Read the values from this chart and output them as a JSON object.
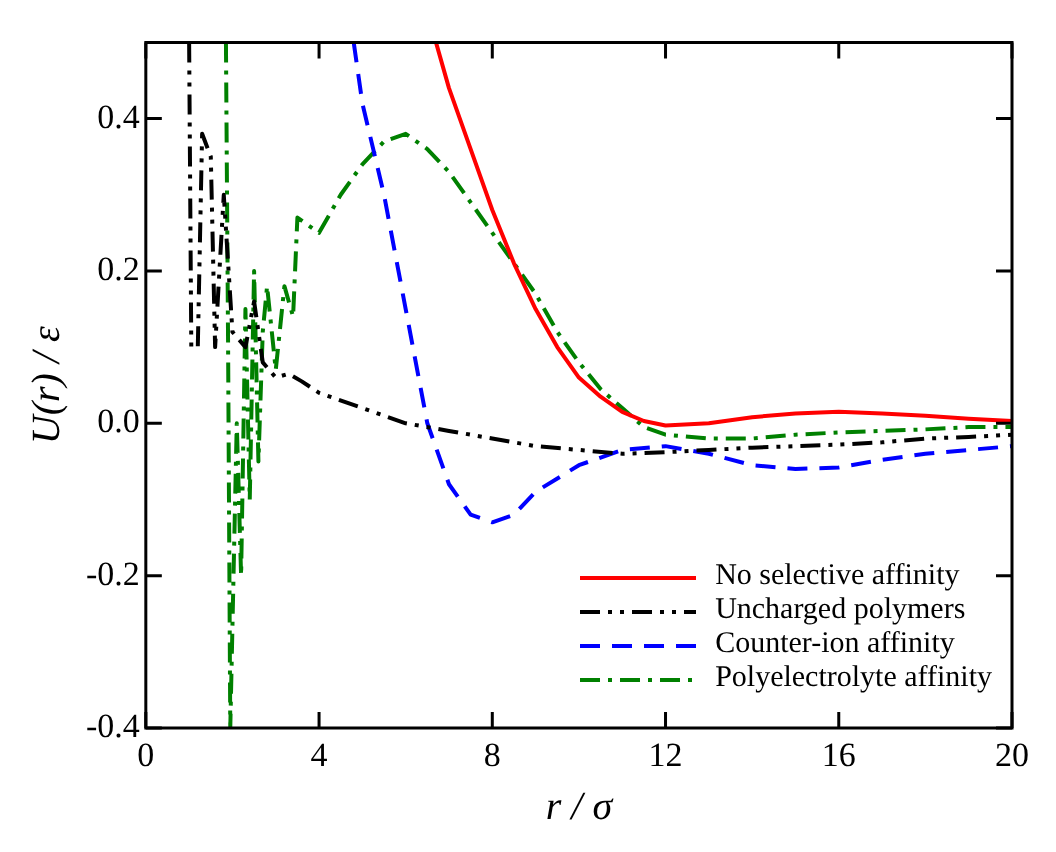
{
  "chart_data": {
    "type": "line",
    "xlabel": "r / σ",
    "ylabel": "U(r) / ε",
    "xlim": [
      0,
      20
    ],
    "ylim": [
      -0.4,
      0.5
    ],
    "xticks": [
      0,
      4,
      8,
      12,
      16,
      20
    ],
    "yticks": [
      -0.4,
      -0.2,
      {
        "value": 0,
        "label": "0.0"
      },
      0.2,
      0.4
    ],
    "grid": false,
    "legend": "bottom right",
    "marker": "none",
    "series": [
      {
        "name": "No selective affinity",
        "color": "#ff0000",
        "line_style": "solid",
        "x": [
          6.7,
          7,
          7.5,
          8,
          8.5,
          9,
          9.5,
          10,
          10.5,
          11,
          11.5,
          12,
          13,
          14,
          15,
          16,
          17,
          18,
          19,
          20
        ],
        "values": [
          0.5,
          0.44,
          0.36,
          0.28,
          0.21,
          0.15,
          0.1,
          0.06,
          0.035,
          0.015,
          0.003,
          -0.003,
          0,
          0.008,
          0.013,
          0.015,
          0.013,
          0.01,
          0.006,
          0.003
        ]
      },
      {
        "name": "Uncharged polymers",
        "color": "#000000",
        "line_style": "dashdotdot",
        "x": [
          1,
          1.05,
          1.2,
          1.3,
          1.5,
          1.6,
          1.8,
          2,
          2.3,
          2.5,
          2.7,
          3,
          3.3,
          3.6,
          4,
          5,
          6,
          7,
          8,
          9,
          10,
          11,
          12,
          13,
          14,
          15,
          16,
          17,
          18,
          19,
          20
        ],
        "values": [
          0.5,
          0.1,
          0.1,
          0.38,
          0.35,
          0.1,
          0.3,
          0.12,
          0.1,
          0.16,
          0.08,
          0.06,
          0.065,
          0.055,
          0.04,
          0.02,
          0,
          -0.01,
          -0.02,
          -0.03,
          -0.035,
          -0.04,
          -0.038,
          -0.035,
          -0.032,
          -0.03,
          -0.028,
          -0.025,
          -0.02,
          -0.018,
          -0.015
        ]
      },
      {
        "name": "Counter-ion affinity",
        "color": "#0000ff",
        "line_style": "dashed",
        "x": [
          4.8,
          5,
          5.5,
          6,
          6.5,
          7,
          7.5,
          8,
          8.5,
          9,
          10,
          11,
          12,
          13,
          14,
          15,
          16,
          17,
          18,
          19,
          20
        ],
        "values": [
          0.5,
          0.42,
          0.3,
          0.15,
          0,
          -0.08,
          -0.12,
          -0.13,
          -0.12,
          -0.09,
          -0.055,
          -0.035,
          -0.03,
          -0.04,
          -0.055,
          -0.06,
          -0.058,
          -0.048,
          -0.04,
          -0.035,
          -0.03
        ]
      },
      {
        "name": "Polyelectrolyte affinity",
        "color": "#008000",
        "line_style": "dashdot",
        "x": [
          1.85,
          1.9,
          1.95,
          2.1,
          2.2,
          2.3,
          2.4,
          2.5,
          2.6,
          2.7,
          2.8,
          3,
          3.2,
          3.4,
          3.5,
          4,
          4.5,
          5,
          5.5,
          6,
          6.5,
          7,
          7.5,
          8,
          8.5,
          9,
          9.5,
          10,
          10.5,
          11,
          11.5,
          12,
          13,
          14,
          15,
          16,
          17,
          18,
          19,
          20
        ],
        "values": [
          0.5,
          0.1,
          -0.4,
          0,
          -0.2,
          0.15,
          -0.1,
          0.2,
          -0.05,
          0.12,
          0.18,
          0.07,
          0.18,
          0.14,
          0.27,
          0.25,
          0.3,
          0.34,
          0.37,
          0.38,
          0.36,
          0.33,
          0.29,
          0.25,
          0.21,
          0.17,
          0.12,
          0.08,
          0.045,
          0.02,
          -0.005,
          -0.015,
          -0.02,
          -0.02,
          -0.015,
          -0.012,
          -0.01,
          -0.008,
          -0.005,
          -0.005
        ]
      }
    ]
  }
}
